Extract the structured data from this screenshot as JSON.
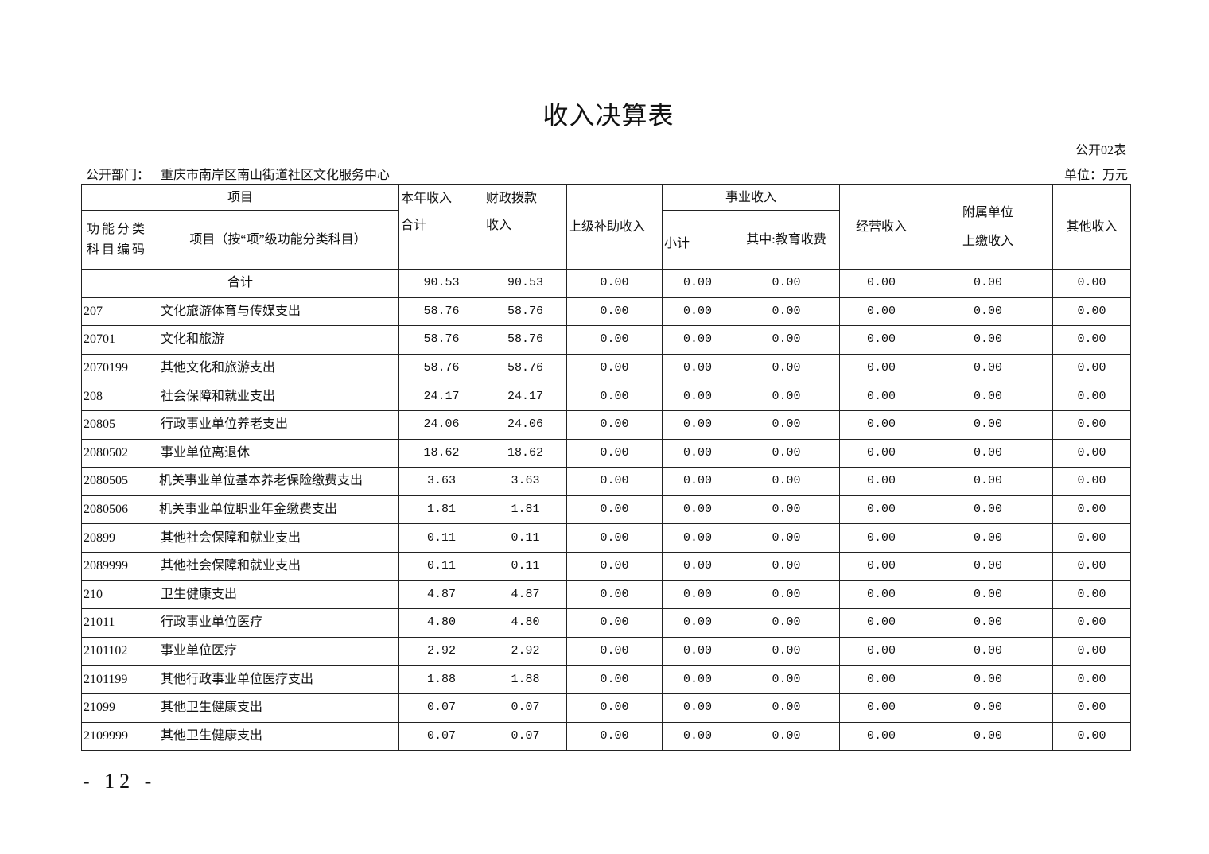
{
  "title": "收入决算表",
  "table_no": "公开02表",
  "dept_label": "公开部门：",
  "dept_name": "重庆市南岸区南山街道社区文化服务中心",
  "unit": "单位：万元",
  "headers": {
    "item": "项目",
    "code": "功能分类科目编码",
    "item_name": "项目（按“项”级功能分类科目）",
    "total_line1": "本年收入",
    "total_line2": "合计",
    "fiscal_line1": "财政拨款",
    "fiscal_line2": "收入",
    "superior": "上级补助收入",
    "business": "事业收入",
    "subtotal": "小计",
    "education": "其中:教育收费",
    "operating": "经营收入",
    "affiliated_line1": "附属单位",
    "affiliated_line2": "上缴收入",
    "other": "其他收入"
  },
  "total_row": {
    "label": "合计",
    "values": [
      "90.53",
      "90.53",
      "0.00",
      "0.00",
      "0.00",
      "0.00",
      "0.00",
      "0.00"
    ]
  },
  "rows": [
    {
      "code": "207",
      "name": "文化旅游体育与传媒支出",
      "values": [
        "58.76",
        "58.76",
        "0.00",
        "0.00",
        "0.00",
        "0.00",
        "0.00",
        "0.00"
      ]
    },
    {
      "code": "20701",
      "name": "文化和旅游",
      "values": [
        "58.76",
        "58.76",
        "0.00",
        "0.00",
        "0.00",
        "0.00",
        "0.00",
        "0.00"
      ]
    },
    {
      "code": "2070199",
      "name": "其他文化和旅游支出",
      "values": [
        "58.76",
        "58.76",
        "0.00",
        "0.00",
        "0.00",
        "0.00",
        "0.00",
        "0.00"
      ]
    },
    {
      "code": "208",
      "name": "社会保障和就业支出",
      "values": [
        "24.17",
        "24.17",
        "0.00",
        "0.00",
        "0.00",
        "0.00",
        "0.00",
        "0.00"
      ]
    },
    {
      "code": "20805",
      "name": "行政事业单位养老支出",
      "values": [
        "24.06",
        "24.06",
        "0.00",
        "0.00",
        "0.00",
        "0.00",
        "0.00",
        "0.00"
      ]
    },
    {
      "code": "2080502",
      "name": "事业单位离退休",
      "values": [
        "18.62",
        "18.62",
        "0.00",
        "0.00",
        "0.00",
        "0.00",
        "0.00",
        "0.00"
      ]
    },
    {
      "code": "2080505",
      "name": "机关事业单位基本养老保险缴费支出",
      "values": [
        "3.63",
        "3.63",
        "0.00",
        "0.00",
        "0.00",
        "0.00",
        "0.00",
        "0.00"
      ]
    },
    {
      "code": "2080506",
      "name": "机关事业单位职业年金缴费支出",
      "values": [
        "1.81",
        "1.81",
        "0.00",
        "0.00",
        "0.00",
        "0.00",
        "0.00",
        "0.00"
      ]
    },
    {
      "code": "20899",
      "name": "其他社会保障和就业支出",
      "values": [
        "0.11",
        "0.11",
        "0.00",
        "0.00",
        "0.00",
        "0.00",
        "0.00",
        "0.00"
      ]
    },
    {
      "code": "2089999",
      "name": "其他社会保障和就业支出",
      "values": [
        "0.11",
        "0.11",
        "0.00",
        "0.00",
        "0.00",
        "0.00",
        "0.00",
        "0.00"
      ]
    },
    {
      "code": "210",
      "name": "卫生健康支出",
      "values": [
        "4.87",
        "4.87",
        "0.00",
        "0.00",
        "0.00",
        "0.00",
        "0.00",
        "0.00"
      ]
    },
    {
      "code": "21011",
      "name": "行政事业单位医疗",
      "values": [
        "4.80",
        "4.80",
        "0.00",
        "0.00",
        "0.00",
        "0.00",
        "0.00",
        "0.00"
      ]
    },
    {
      "code": "2101102",
      "name": "事业单位医疗",
      "values": [
        "2.92",
        "2.92",
        "0.00",
        "0.00",
        "0.00",
        "0.00",
        "0.00",
        "0.00"
      ]
    },
    {
      "code": "2101199",
      "name": "其他行政事业单位医疗支出",
      "values": [
        "1.88",
        "1.88",
        "0.00",
        "0.00",
        "0.00",
        "0.00",
        "0.00",
        "0.00"
      ]
    },
    {
      "code": "21099",
      "name": "其他卫生健康支出",
      "values": [
        "0.07",
        "0.07",
        "0.00",
        "0.00",
        "0.00",
        "0.00",
        "0.00",
        "0.00"
      ]
    },
    {
      "code": "2109999",
      "name": "其他卫生健康支出",
      "values": [
        "0.07",
        "0.07",
        "0.00",
        "0.00",
        "0.00",
        "0.00",
        "0.00",
        "0.00"
      ]
    }
  ],
  "page_number": "- 12 -"
}
